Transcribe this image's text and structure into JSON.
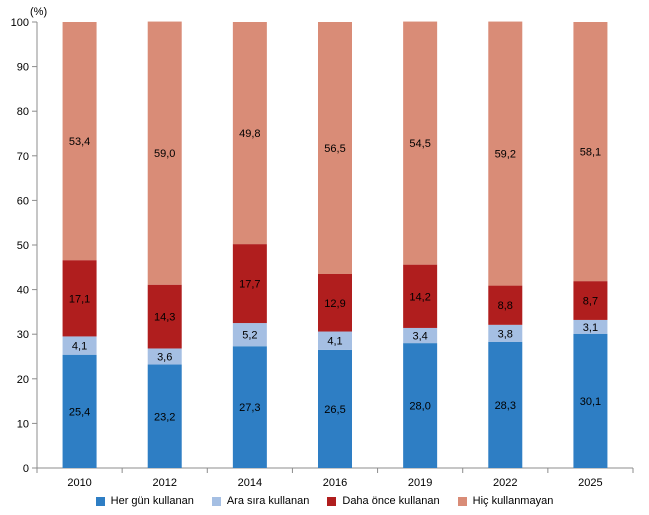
{
  "chart_data": {
    "type": "bar",
    "stacked": true,
    "unit_label": "(%)",
    "categories": [
      "2010",
      "2012",
      "2014",
      "2016",
      "2019",
      "2022",
      "2025"
    ],
    "ylim": [
      0,
      100
    ],
    "yticks": [
      0,
      10,
      20,
      30,
      40,
      50,
      60,
      70,
      80,
      90,
      100
    ],
    "grid": false,
    "legend_position": "bottom",
    "series": [
      {
        "name": "Her gün kullanan",
        "color": "#2e7ec4",
        "values": [
          25.4,
          23.2,
          27.3,
          26.5,
          28.0,
          28.3,
          30.1
        ],
        "labels": [
          "25,4",
          "23,2",
          "27,3",
          "26,5",
          "28,0",
          "28,3",
          "30,1"
        ]
      },
      {
        "name": "Ara sıra kullanan",
        "color": "#a5bfe3",
        "values": [
          4.1,
          3.6,
          5.2,
          4.1,
          3.4,
          3.8,
          3.1
        ],
        "labels": [
          "4,1",
          "3,6",
          "5,2",
          "4,1",
          "3,4",
          "3,8",
          "3,1"
        ]
      },
      {
        "name": "Daha önce kullanan",
        "color": "#b01e1e",
        "values": [
          17.1,
          14.3,
          17.7,
          12.9,
          14.2,
          8.8,
          8.7
        ],
        "labels": [
          "17,1",
          "14,3",
          "17,7",
          "12,9",
          "14,2",
          "8,8",
          "8,7"
        ]
      },
      {
        "name": "Hiç kullanmayan",
        "color": "#d98c77",
        "values": [
          53.4,
          59.0,
          49.8,
          56.5,
          54.5,
          59.2,
          58.1
        ],
        "labels": [
          "53,4",
          "59,0",
          "49,8",
          "56,5",
          "54,5",
          "59,2",
          "58,1"
        ]
      }
    ]
  }
}
